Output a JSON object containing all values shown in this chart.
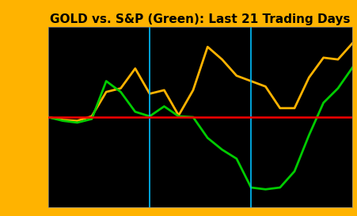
{
  "title": "GOLD vs. S&P (Green): Last 21 Trading Days",
  "gold": [
    0.0,
    -0.15,
    -0.2,
    0.05,
    1.4,
    1.6,
    2.7,
    1.3,
    1.5,
    0.1,
    1.5,
    3.9,
    3.2,
    2.3,
    2.0,
    1.7,
    0.5,
    0.5,
    2.2,
    3.3,
    3.2,
    4.1
  ],
  "sp500": [
    0.0,
    -0.2,
    -0.3,
    -0.1,
    2.0,
    1.4,
    0.3,
    0.05,
    0.6,
    0.05,
    0.0,
    -1.15,
    -1.8,
    -2.3,
    -3.9,
    -4.0,
    -3.9,
    -3.0,
    -1.0,
    0.8,
    1.6,
    2.75
  ],
  "vlines": [
    7,
    14
  ],
  "ylim": [
    -5.0,
    5.0
  ],
  "yticks": [
    -5.0,
    -4.0,
    -3.0,
    -2.0,
    -1.0,
    0.0,
    1.0,
    2.0,
    3.0,
    4.0,
    5.0
  ],
  "gold_color": "#FFB300",
  "sp_color": "#00CC00",
  "zero_line_color": "#FF0000",
  "vline_color": "#00BFFF",
  "background_color": "#000000",
  "outer_color": "#FFB300",
  "title_fontsize": 11,
  "line_width": 2.0
}
